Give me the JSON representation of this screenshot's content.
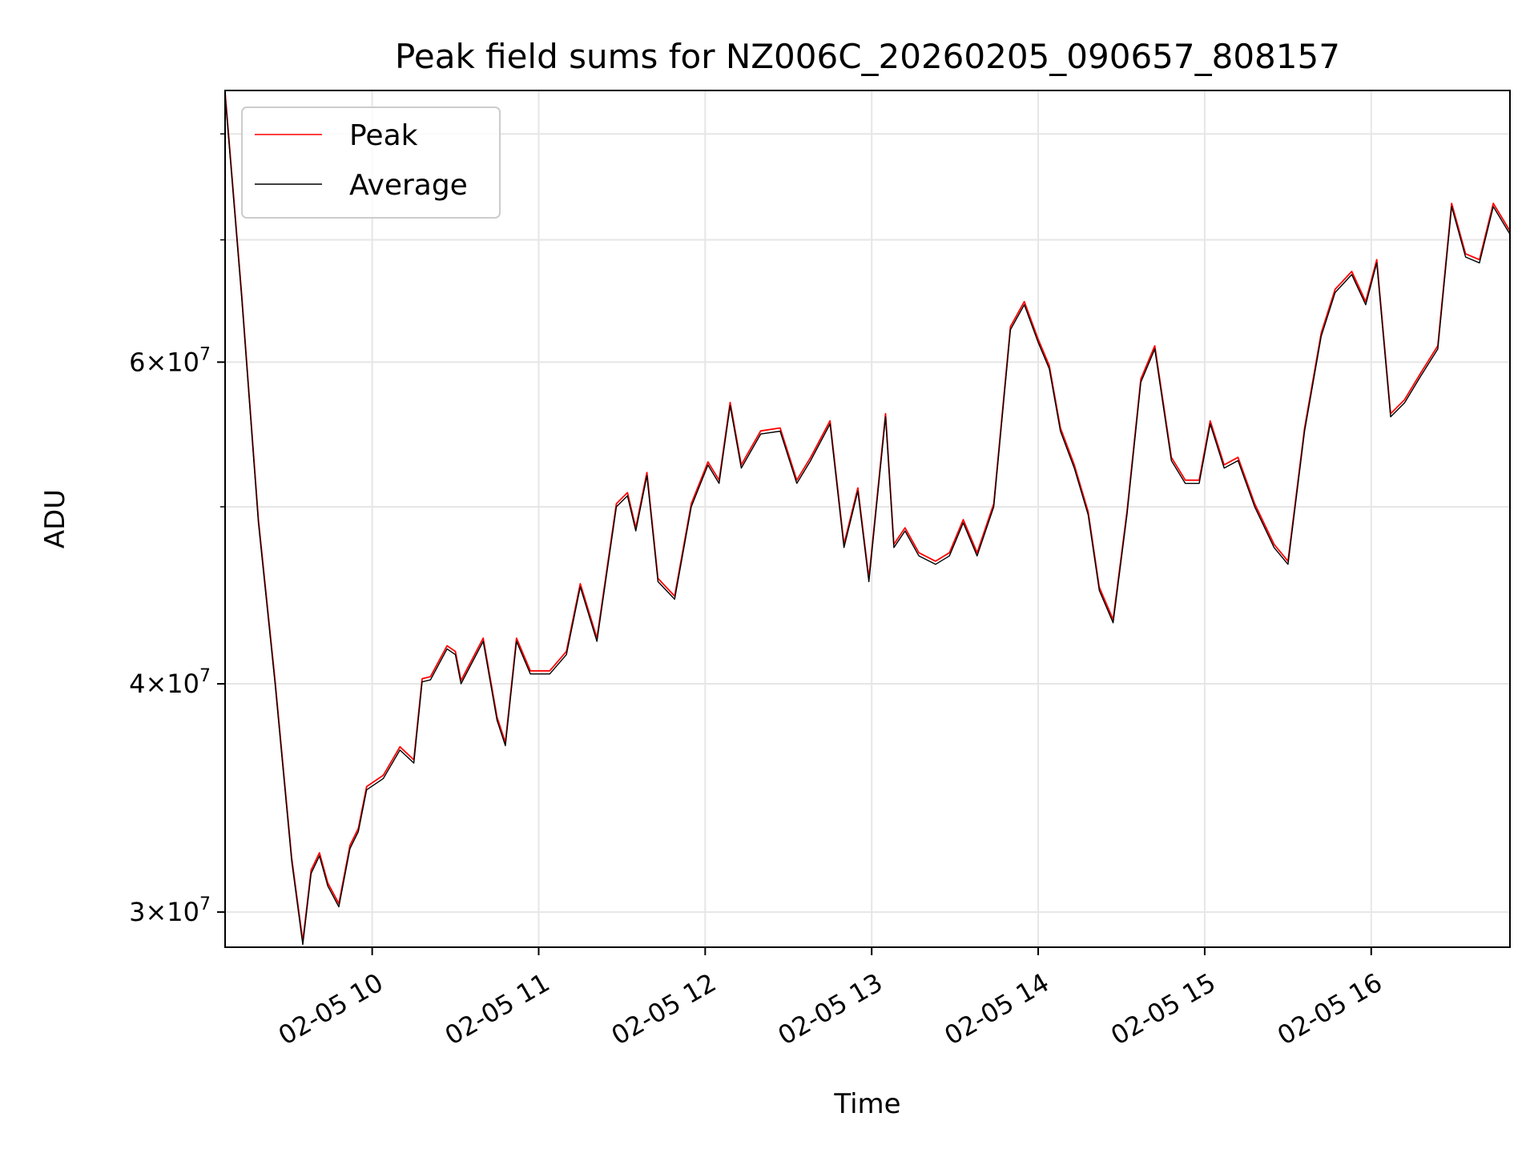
{
  "chart_data": {
    "type": "line",
    "title": "Peak field sums for NZ006C_20260205_090657_808157",
    "xlabel": "Time",
    "ylabel": "ADU",
    "y_scale": "log",
    "ylim": [
      28700000,
      84500000
    ],
    "xlim": [
      "2026-02-05 09:07",
      "2026-02-05 16:50"
    ],
    "grid": true,
    "legend_position": "top-left",
    "x_ticks": [
      {
        "time": "2026-02-05 10:00",
        "label": "02-05 10"
      },
      {
        "time": "2026-02-05 11:00",
        "label": "02-05 11"
      },
      {
        "time": "2026-02-05 12:00",
        "label": "02-05 12"
      },
      {
        "time": "2026-02-05 13:00",
        "label": "02-05 13"
      },
      {
        "time": "2026-02-05 14:00",
        "label": "02-05 14"
      },
      {
        "time": "2026-02-05 15:00",
        "label": "02-05 15"
      },
      {
        "time": "2026-02-05 16:00",
        "label": "02-05 16"
      }
    ],
    "y_ticks": [
      {
        "value": 30000000,
        "mantissa": "3",
        "exponent": "7"
      },
      {
        "value": 40000000,
        "mantissa": "4",
        "exponent": "7"
      },
      {
        "value": 60000000,
        "mantissa": "6",
        "exponent": "7"
      }
    ],
    "y_minor_ticks": [
      50000000,
      70000000,
      80000000
    ],
    "series": [
      {
        "name": "Peak",
        "color": "#ff0000"
      },
      {
        "name": "Average",
        "color": "#000000"
      }
    ],
    "x": [
      "2026-02-05 09:07",
      "2026-02-05 09:13",
      "2026-02-05 09:19",
      "2026-02-05 09:25",
      "2026-02-05 09:31",
      "2026-02-05 09:35",
      "2026-02-05 09:38",
      "2026-02-05 09:41",
      "2026-02-05 09:44",
      "2026-02-05 09:48",
      "2026-02-05 09:52",
      "2026-02-05 09:55",
      "2026-02-05 09:58",
      "2026-02-05 10:04",
      "2026-02-05 10:10",
      "2026-02-05 10:15",
      "2026-02-05 10:18",
      "2026-02-05 10:21",
      "2026-02-05 10:27",
      "2026-02-05 10:30",
      "2026-02-05 10:32",
      "2026-02-05 10:40",
      "2026-02-05 10:45",
      "2026-02-05 10:48",
      "2026-02-05 10:52",
      "2026-02-05 10:57",
      "2026-02-05 11:04",
      "2026-02-05 11:10",
      "2026-02-05 11:15",
      "2026-02-05 11:21",
      "2026-02-05 11:28",
      "2026-02-05 11:32",
      "2026-02-05 11:35",
      "2026-02-05 11:39",
      "2026-02-05 11:43",
      "2026-02-05 11:49",
      "2026-02-05 11:55",
      "2026-02-05 12:01",
      "2026-02-05 12:05",
      "2026-02-05 12:09",
      "2026-02-05 12:13",
      "2026-02-05 12:20",
      "2026-02-05 12:27",
      "2026-02-05 12:33",
      "2026-02-05 12:38",
      "2026-02-05 12:45",
      "2026-02-05 12:50",
      "2026-02-05 12:55",
      "2026-02-05 12:59",
      "2026-02-05 13:05",
      "2026-02-05 13:08",
      "2026-02-05 13:12",
      "2026-02-05 13:17",
      "2026-02-05 13:23",
      "2026-02-05 13:28",
      "2026-02-05 13:33",
      "2026-02-05 13:38",
      "2026-02-05 13:44",
      "2026-02-05 13:50",
      "2026-02-05 13:55",
      "2026-02-05 14:00",
      "2026-02-05 14:04",
      "2026-02-05 14:08",
      "2026-02-05 14:13",
      "2026-02-05 14:18",
      "2026-02-05 14:22",
      "2026-02-05 14:27",
      "2026-02-05 14:32",
      "2026-02-05 14:37",
      "2026-02-05 14:42",
      "2026-02-05 14:48",
      "2026-02-05 14:53",
      "2026-02-05 14:58",
      "2026-02-05 15:02",
      "2026-02-05 15:07",
      "2026-02-05 15:12",
      "2026-02-05 15:18",
      "2026-02-05 15:25",
      "2026-02-05 15:30",
      "2026-02-05 15:36",
      "2026-02-05 15:42",
      "2026-02-05 15:47",
      "2026-02-05 15:53",
      "2026-02-05 15:58",
      "2026-02-05 16:02",
      "2026-02-05 16:07",
      "2026-02-05 16:12",
      "2026-02-05 16:18",
      "2026-02-05 16:24",
      "2026-02-05 16:29",
      "2026-02-05 16:34",
      "2026-02-05 16:39",
      "2026-02-05 16:44",
      "2026-02-05 16:50"
    ],
    "y": [
      84000000,
      65000000,
      49000000,
      40000000,
      32000000,
      28800000,
      31500000,
      32200000,
      31000000,
      30200000,
      32500000,
      33200000,
      35000000,
      35500000,
      36800000,
      36200000,
      40100000,
      40200000,
      41800000,
      41500000,
      40000000,
      42200000,
      38200000,
      37000000,
      42200000,
      40500000,
      40500000,
      41500000,
      45200000,
      42200000,
      50000000,
      50700000,
      48500000,
      52000000,
      45500000,
      44500000,
      50000000,
      52700000,
      51500000,
      56800000,
      52500000,
      54800000,
      55000000,
      51500000,
      53000000,
      55500000,
      47500000,
      51000000,
      45500000,
      56000000,
      47500000,
      48500000,
      47000000,
      46500000,
      47000000,
      49000000,
      47000000,
      50000000,
      62500000,
      64500000,
      61500000,
      59500000,
      55000000,
      52500000,
      49500000,
      45000000,
      43200000,
      49500000,
      58500000,
      61000000,
      53000000,
      51500000,
      51500000,
      55500000,
      52500000,
      53000000,
      50000000,
      47500000,
      46500000,
      55000000,
      62000000,
      65500000,
      67000000,
      64500000,
      68000000,
      56000000,
      57000000,
      59000000,
      61000000,
      73000000,
      68500000,
      68000000,
      73000000,
      70500000
    ]
  }
}
